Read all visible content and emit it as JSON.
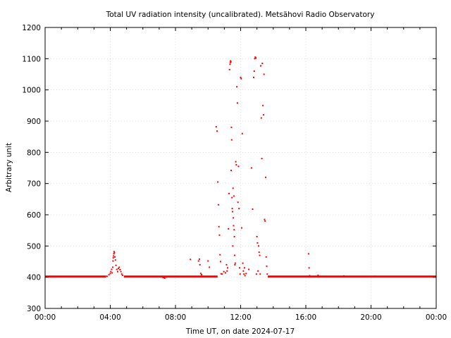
{
  "chart_data": {
    "type": "scatter",
    "title": "Total UV radiation intensity (uncalibrated). Metsähovi Radio Observatory",
    "xlabel": "Time UT, on date 2024-07-17",
    "ylabel": "Arbitrary unit",
    "xlim": [
      "00:00",
      "24:00"
    ],
    "ylim": [
      300,
      1200
    ],
    "x_ticks": [
      "00:00",
      "04:00",
      "08:00",
      "12:00",
      "16:00",
      "20:00",
      "00:00"
    ],
    "y_ticks": [
      300,
      400,
      500,
      600,
      700,
      800,
      900,
      1000,
      1100,
      1200
    ],
    "grid": true,
    "legend": "none",
    "marker_color": "#ff0000",
    "baseline": {
      "value": 402,
      "segments": [
        [
          "00:00",
          "03:45"
        ],
        [
          "04:50",
          "10:35"
        ],
        [
          "13:40",
          "24:00"
        ]
      ]
    },
    "series": [
      {
        "x": [
          "03:48",
          "03:55",
          "04:00",
          "04:02",
          "04:05",
          "04:07",
          "04:09",
          "04:10",
          "04:11",
          "04:12",
          "04:13",
          "04:14",
          "04:15",
          "04:17",
          "04:19",
          "04:21",
          "04:24",
          "04:27",
          "04:30",
          "04:33",
          "04:36",
          "04:39",
          "04:42",
          "04:45",
          "07:15",
          "07:20",
          "07:25",
          "08:55",
          "09:25",
          "09:28",
          "09:30",
          "09:33",
          "09:36",
          "10:00",
          "10:05",
          "10:30",
          "10:33",
          "10:36",
          "10:38",
          "10:40",
          "10:42",
          "10:44",
          "10:46",
          "10:48",
          "10:52",
          "10:58",
          "11:04",
          "11:08",
          "11:10",
          "11:12",
          "11:15",
          "11:17",
          "11:19",
          "11:21",
          "11:22",
          "11:23",
          "11:24",
          "11:25",
          "11:26",
          "11:27",
          "11:28",
          "11:29",
          "11:30",
          "11:31",
          "11:32",
          "11:33",
          "11:34",
          "11:35",
          "11:36",
          "11:37",
          "11:38",
          "11:39",
          "11:40",
          "11:42",
          "11:44",
          "11:46",
          "11:48",
          "11:50",
          "11:52",
          "11:54",
          "11:56",
          "11:58",
          "12:00",
          "12:02",
          "12:04",
          "12:06",
          "12:08",
          "12:10",
          "12:12",
          "12:14",
          "12:16",
          "12:20",
          "12:30",
          "12:40",
          "12:44",
          "12:48",
          "12:50",
          "12:52",
          "12:54",
          "12:56",
          "12:58",
          "13:00",
          "13:02",
          "13:04",
          "13:06",
          "13:08",
          "13:10",
          "13:12",
          "13:14",
          "13:16",
          "13:18",
          "13:20",
          "13:22",
          "13:24",
          "13:26",
          "13:28",
          "13:30",
          "13:32",
          "13:34",
          "13:36",
          "13:38",
          "16:10",
          "16:12",
          "16:14",
          "16:45",
          "18:20",
          "20:15"
        ],
        "y": [
          403,
          408,
          412,
          418,
          425,
          414,
          432,
          452,
          462,
          468,
          475,
          482,
          478,
          465,
          455,
          438,
          425,
          418,
          428,
          432,
          424,
          418,
          410,
          406,
          399,
          397,
          401,
          457,
          452,
          458,
          440,
          412,
          408,
          452,
          432,
          882,
          868,
          705,
          632,
          562,
          535,
          472,
          450,
          411,
          410,
          418,
          414,
          440,
          420,
          430,
          555,
          668,
          1065,
          1082,
          1088,
          1093,
          1090,
          742,
          880,
          840,
          655,
          620,
          610,
          500,
          685,
          590,
          565,
          660,
          552,
          530,
          470,
          440,
          445,
          770,
          760,
          1010,
          958,
          640,
          755,
          620,
          430,
          410,
          1040,
          1036,
          558,
          860,
          445,
          420,
          410,
          430,
          405,
          412,
          425,
          750,
          618,
          1040,
          1060,
          1100,
          1105,
          1102,
          410,
          530,
          510,
          420,
          500,
          480,
          470,
          410,
          1077,
          910,
          780,
          1085,
          950,
          920,
          1050,
          585,
          580,
          720,
          465,
          435,
          410,
          475,
          430,
          405,
          406,
          404,
          403
        ]
      }
    ]
  }
}
